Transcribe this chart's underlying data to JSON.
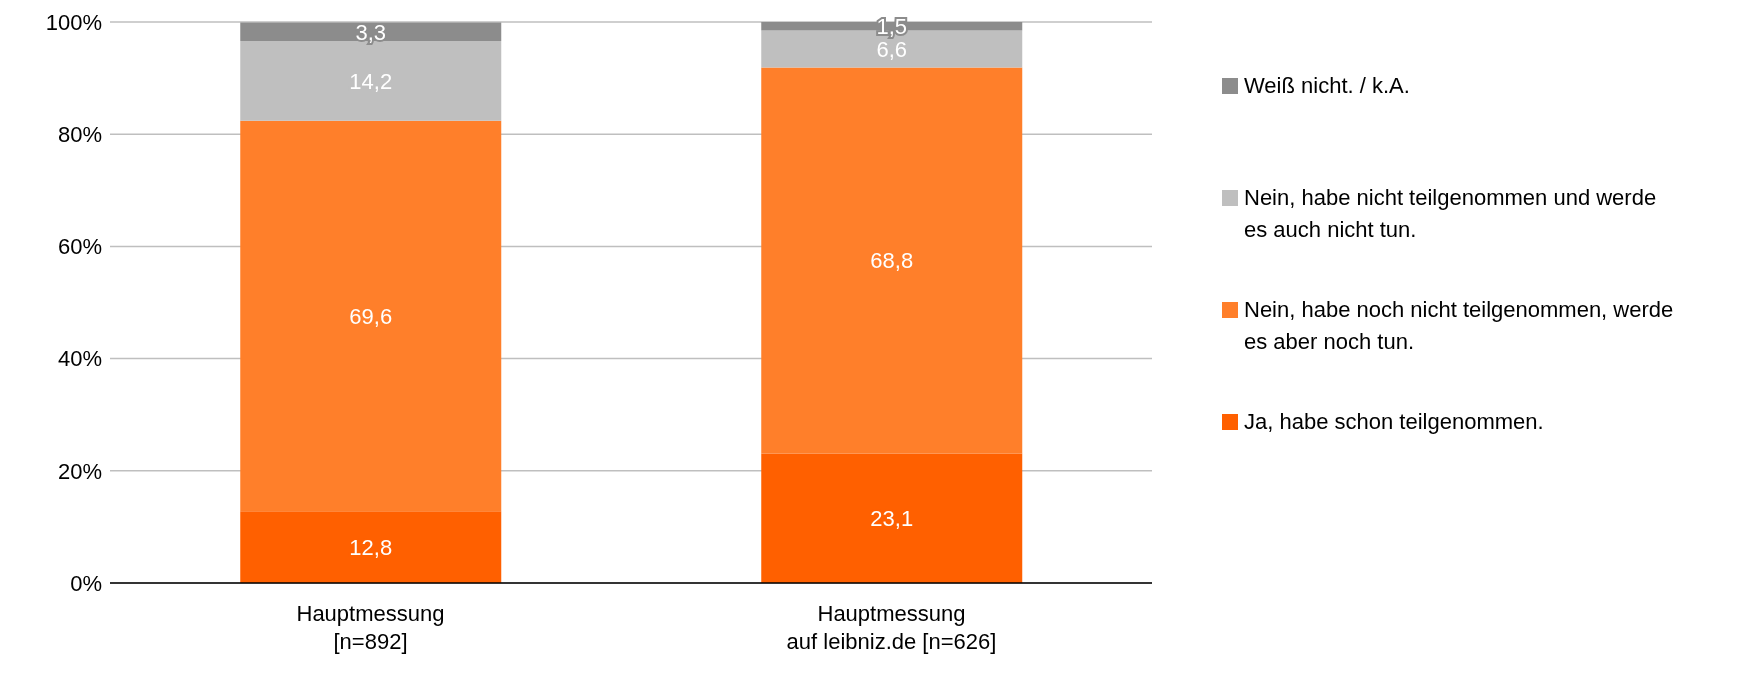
{
  "chart_data": {
    "type": "bar",
    "stacked": true,
    "categories": [
      "Hauptmessung\n[n=892]",
      "Hauptmessung\nauf leibniz.de [n=626]"
    ],
    "series": [
      {
        "name": "Ja, habe schon teilgenommen.",
        "color": "#ff6000",
        "values": [
          12.8,
          23.1
        ],
        "value_labels": [
          "12,8",
          "23,1"
        ]
      },
      {
        "name": "Nein, habe noch nicht teilgenommen, werde es aber noch tun.",
        "color": "#ff7f2a",
        "values": [
          69.6,
          68.8
        ],
        "value_labels": [
          "69,6",
          "68,8"
        ]
      },
      {
        "name": "Nein, habe nicht teilgenommen und werde es auch nicht tun.",
        "color": "#bfbfbf",
        "values": [
          14.2,
          6.6
        ],
        "value_labels": [
          "14,2",
          "6,6"
        ]
      },
      {
        "name": "Weiß nicht. / k.A.",
        "color": "#8c8c8c",
        "values": [
          3.3,
          1.5
        ],
        "value_labels": [
          "3,3",
          "1,5"
        ]
      }
    ],
    "ylim": [
      0,
      100
    ],
    "yticks": [
      {
        "value": 0,
        "label": "0%"
      },
      {
        "value": 20,
        "label": "20%"
      },
      {
        "value": 40,
        "label": "40%"
      },
      {
        "value": 60,
        "label": "60%"
      },
      {
        "value": 80,
        "label": "80%"
      },
      {
        "value": 100,
        "label": "100%"
      }
    ],
    "grid": "y",
    "legend": "right"
  }
}
